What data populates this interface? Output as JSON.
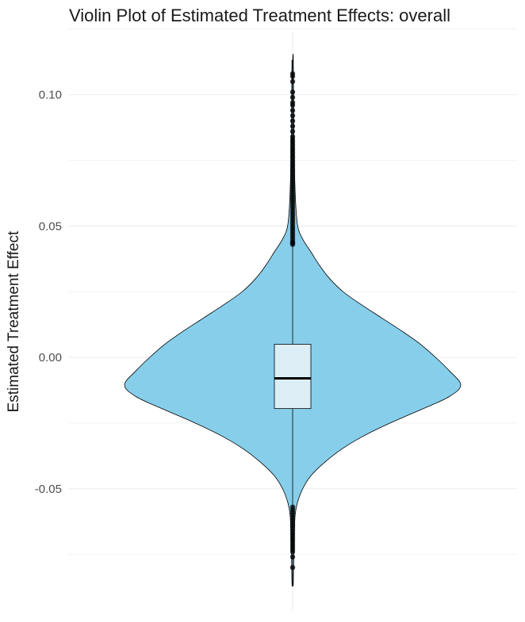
{
  "chart_data": {
    "type": "violin",
    "title": "Violin Plot of Estimated Treatment Effects: overall",
    "xlabel": "",
    "ylabel": "Estimated Treatment Effect",
    "ylim": [
      -0.087,
      0.115
    ],
    "yticks": [
      {
        "value": 0.1,
        "label": "0.10"
      },
      {
        "value": 0.05,
        "label": "0.05"
      },
      {
        "value": 0.0,
        "label": "0.00"
      },
      {
        "value": -0.05,
        "label": "-0.05"
      }
    ],
    "grid": true,
    "legend": "none",
    "colors": {
      "violin_fill": "#87CEEB",
      "box_fill": "#DDEEF7",
      "outline": "#000000",
      "grid": "#EBEBEB"
    },
    "violin": {
      "min": -0.086,
      "max": 0.113,
      "mode": -0.0105,
      "density_profile": [
        {
          "y": 0.113,
          "density": 0.004
        },
        {
          "y": 0.08,
          "density": 0.008
        },
        {
          "y": 0.06,
          "density": 0.017
        },
        {
          "y": 0.05,
          "density": 0.03
        },
        {
          "y": 0.045,
          "density": 0.06
        },
        {
          "y": 0.04,
          "density": 0.11
        },
        {
          "y": 0.035,
          "density": 0.16
        },
        {
          "y": 0.03,
          "density": 0.22
        },
        {
          "y": 0.025,
          "density": 0.3
        },
        {
          "y": 0.02,
          "density": 0.41
        },
        {
          "y": 0.015,
          "density": 0.53
        },
        {
          "y": 0.01,
          "density": 0.65
        },
        {
          "y": 0.005,
          "density": 0.76
        },
        {
          "y": 0.0,
          "density": 0.85
        },
        {
          "y": -0.005,
          "density": 0.93
        },
        {
          "y": -0.0105,
          "density": 1.0
        },
        {
          "y": -0.015,
          "density": 0.93
        },
        {
          "y": -0.02,
          "density": 0.76
        },
        {
          "y": -0.025,
          "density": 0.58
        },
        {
          "y": -0.03,
          "density": 0.42
        },
        {
          "y": -0.035,
          "density": 0.29
        },
        {
          "y": -0.04,
          "density": 0.19
        },
        {
          "y": -0.045,
          "density": 0.11
        },
        {
          "y": -0.05,
          "density": 0.06
        },
        {
          "y": -0.055,
          "density": 0.03
        },
        {
          "y": -0.06,
          "density": 0.015
        },
        {
          "y": -0.07,
          "density": 0.008
        },
        {
          "y": -0.086,
          "density": 0.004
        }
      ]
    },
    "boxplot": {
      "q1": -0.0195,
      "median": -0.008,
      "q3": 0.005,
      "whisker_low": -0.0565,
      "whisker_high": 0.0425,
      "outliers": [
        0.043,
        0.0435,
        0.044,
        0.045,
        0.046,
        0.047,
        0.048,
        0.049,
        0.05,
        0.051,
        0.052,
        0.053,
        0.054,
        0.055,
        0.056,
        0.057,
        0.058,
        0.059,
        0.06,
        0.061,
        0.062,
        0.063,
        0.064,
        0.065,
        0.066,
        0.067,
        0.068,
        0.069,
        0.07,
        0.071,
        0.072,
        0.073,
        0.074,
        0.075,
        0.076,
        0.077,
        0.078,
        0.079,
        0.08,
        0.081,
        0.082,
        0.083,
        0.084,
        0.086,
        0.088,
        0.09,
        0.092,
        0.094,
        0.096,
        0.097,
        0.099,
        0.101,
        0.105,
        0.107,
        0.108,
        -0.057,
        -0.058,
        -0.059,
        -0.06,
        -0.061,
        -0.062,
        -0.063,
        -0.064,
        -0.065,
        -0.066,
        -0.067,
        -0.068,
        -0.069,
        -0.07,
        -0.071,
        -0.072,
        -0.073,
        -0.074,
        -0.076,
        -0.08
      ]
    }
  }
}
